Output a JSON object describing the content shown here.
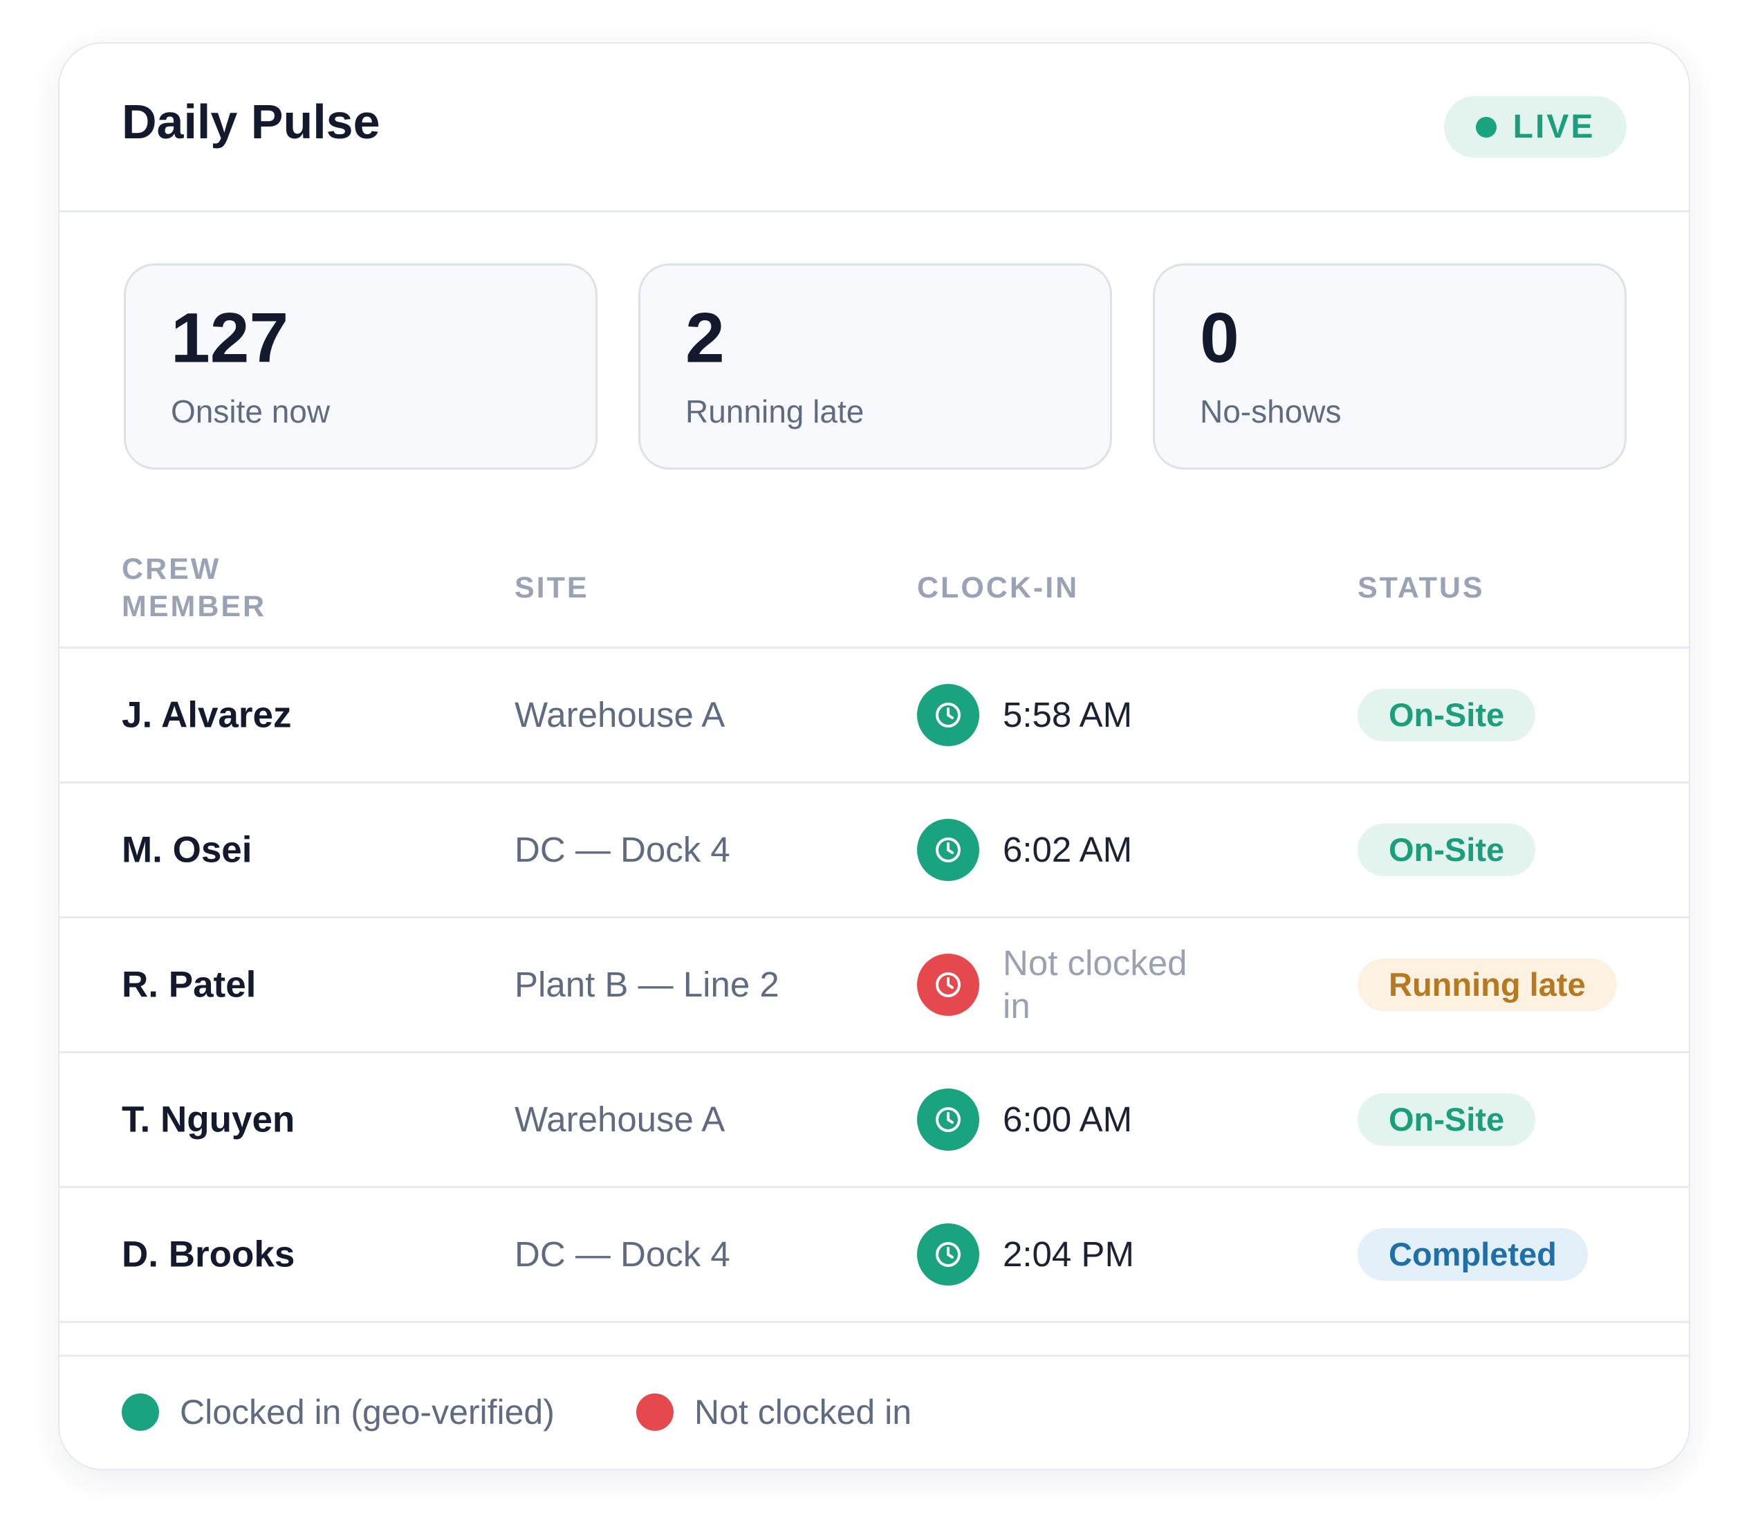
{
  "header": {
    "title": "Daily Pulse",
    "badge": "LIVE"
  },
  "stats": [
    {
      "value": "127",
      "label": "Onsite now"
    },
    {
      "value": "2",
      "label": "Running late"
    },
    {
      "value": "0",
      "label": "No-shows"
    }
  ],
  "table": {
    "columns": [
      "CREW MEMBER",
      "SITE",
      "CLOCK-IN",
      "STATUS"
    ],
    "rows": [
      {
        "name": "J. Alvarez",
        "site": "Warehouse A",
        "clock_in": "5:58 AM",
        "status": "On-Site",
        "icon_color": "#1aa37f",
        "status_color": "#1a9e7b",
        "status_bg": "#e2f4ed",
        "time_color": "#1b2233"
      },
      {
        "name": "M. Osei",
        "site": "DC — Dock 4",
        "clock_in": "6:02 AM",
        "status": "On-Site",
        "icon_color": "#1aa37f",
        "status_color": "#1a9e7b",
        "status_bg": "#e2f4ed",
        "time_color": "#1b2233"
      },
      {
        "name": "R. Patel",
        "site": "Plant B — Line 2",
        "clock_in": "Not clocked in",
        "status": "Running late",
        "icon_color": "#e5484d",
        "status_color": "#b7791f",
        "status_bg": "#fdf1e1",
        "time_color": "#9aa1b1"
      },
      {
        "name": "T. Nguyen",
        "site": "Warehouse A",
        "clock_in": "6:00 AM",
        "status": "On-Site",
        "icon_color": "#1aa37f",
        "status_color": "#1a9e7b",
        "status_bg": "#e2f4ed",
        "time_color": "#1b2233"
      },
      {
        "name": "D. Brooks",
        "site": "DC — Dock 4",
        "clock_in": "2:04 PM",
        "status": "Completed",
        "icon_color": "#1aa37f",
        "status_color": "#1f6fa8",
        "status_bg": "#e3eff9",
        "time_color": "#1b2233"
      }
    ]
  },
  "legend": [
    {
      "label": "Clocked in (geo-verified)",
      "color": "#1aa37f"
    },
    {
      "label": "Not clocked in",
      "color": "#e5484d"
    }
  ]
}
